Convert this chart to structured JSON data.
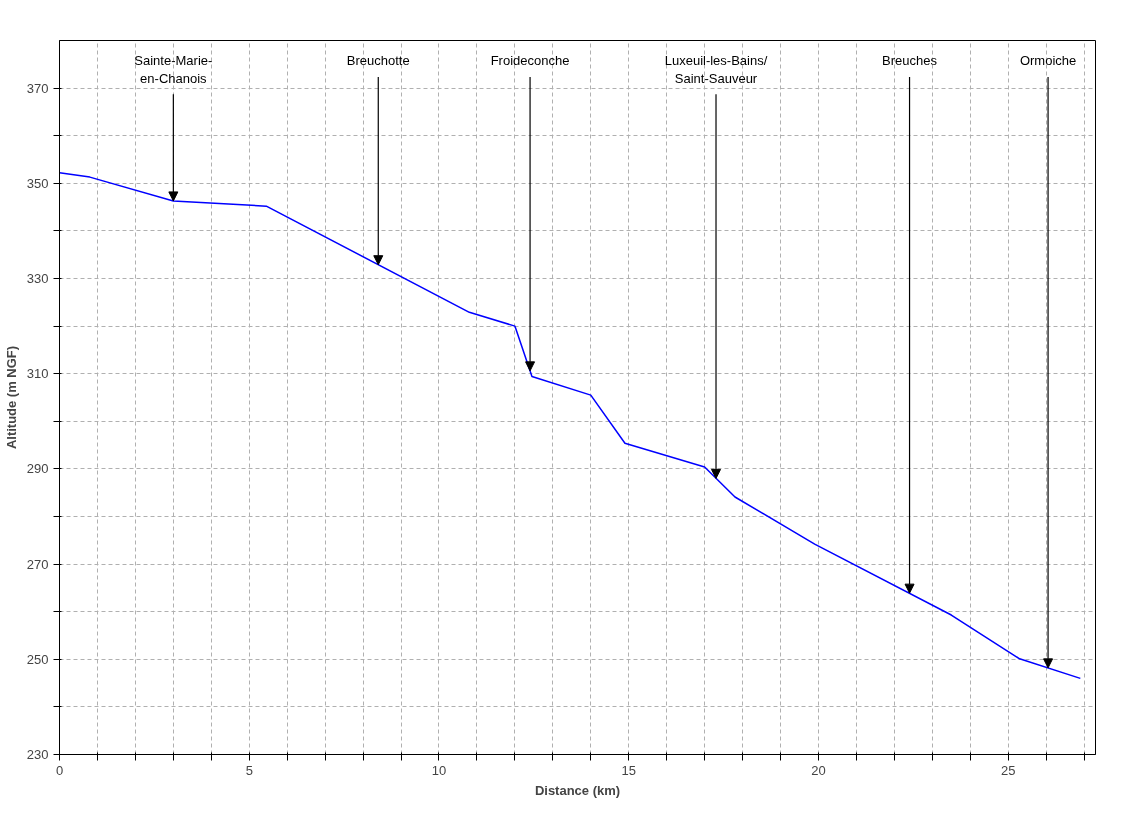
{
  "chart_data": {
    "type": "line",
    "xlabel": "Distance (km)",
    "ylabel": "Altitude (m NGF)",
    "xlim": [
      0,
      27.3
    ],
    "ylim": [
      230,
      380
    ],
    "xticks": [
      0,
      {
        "value": 1,
        "label": null
      },
      {
        "value": 2,
        "label": null
      },
      {
        "value": 3,
        "label": null
      },
      {
        "value": 4,
        "label": null
      },
      5,
      {
        "value": 6,
        "label": null
      },
      {
        "value": 7,
        "label": null
      },
      {
        "value": 8,
        "label": null
      },
      {
        "value": 9,
        "label": null
      },
      10,
      {
        "value": 11,
        "label": null
      },
      {
        "value": 12,
        "label": null
      },
      {
        "value": 13,
        "label": null
      },
      {
        "value": 14,
        "label": null
      },
      15,
      {
        "value": 16,
        "label": null
      },
      {
        "value": 17,
        "label": null
      },
      {
        "value": 18,
        "label": null
      },
      {
        "value": 19,
        "label": null
      },
      20,
      {
        "value": 21,
        "label": null
      },
      {
        "value": 22,
        "label": null
      },
      {
        "value": 23,
        "label": null
      },
      {
        "value": 24,
        "label": null
      },
      25,
      {
        "value": 26,
        "label": null
      },
      {
        "value": 27,
        "label": null
      }
    ],
    "yticks": [
      230,
      {
        "value": 240,
        "label": null
      },
      250,
      {
        "value": 260,
        "label": null
      },
      270,
      {
        "value": 280,
        "label": null
      },
      290,
      {
        "value": 300,
        "label": null
      },
      310,
      {
        "value": 320,
        "label": null
      },
      330,
      {
        "value": 340,
        "label": null
      },
      350,
      {
        "value": 360,
        "label": null
      },
      370
    ],
    "grid": true,
    "marker": "none",
    "line_style": "solid",
    "x": [
      0,
      0.8,
      3.0,
      5.45,
      10.8,
      12.0,
      12.45,
      14.0,
      14.9,
      17.0,
      17.8,
      19.9,
      23.5,
      25.3,
      26.9
    ],
    "series": [
      {
        "color": "#0000ff",
        "values": [
          352.2,
          351.3,
          346.3,
          345.2,
          322.9,
          320,
          309.4,
          305.5,
          295.4,
          290.4,
          284.1,
          274.2,
          259.3,
          250.1,
          246
        ]
      }
    ],
    "annotations": [
      {
        "text": "Sainte-Marie-\nen-Chanois",
        "x": 3.0,
        "y": 346.3
      },
      {
        "text": "Breuchotte",
        "x": 8.4,
        "y": 332.9
      },
      {
        "text": "Froideconche",
        "x": 12.4,
        "y": 310.6
      },
      {
        "text": "Luxeuil-les-Bains/\nSaint-Sauveur",
        "x": 17.3,
        "y": 288.0
      },
      {
        "text": "Breuches",
        "x": 22.4,
        "y": 263.9
      },
      {
        "text": "Ormoiche",
        "x": 26.05,
        "y": 248.2
      }
    ]
  }
}
